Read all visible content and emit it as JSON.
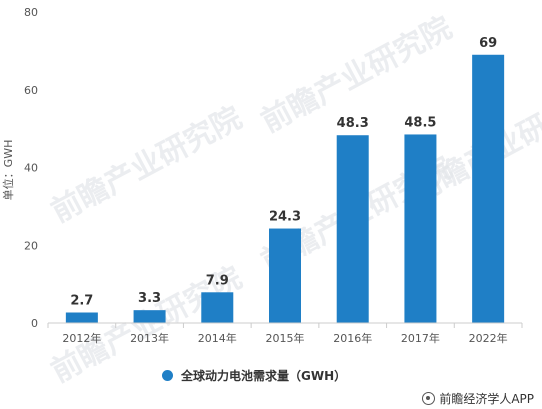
{
  "chart_data": {
    "type": "bar",
    "categories": [
      "2012年",
      "2013年",
      "2014年",
      "2015年",
      "2016年",
      "2017年",
      "2022年"
    ],
    "values": [
      2.7,
      3.3,
      7.9,
      24.3,
      48.3,
      48.5,
      69
    ],
    "data_labels": [
      "2.7",
      "3.3",
      "7.9",
      "24.3",
      "48.3",
      "48.5",
      "69"
    ],
    "ylabel": "单位：GWH",
    "ylim": [
      0,
      80
    ],
    "yticks": [
      0,
      20,
      40,
      60,
      80
    ],
    "legend": "全球动力电池需求量（GWH）",
    "legend_position": "bottom",
    "bar_color": "#1f7fc6",
    "grid": false
  },
  "credit": "前瞻经济学人APP",
  "credit_icon": "info-circle-icon",
  "watermark": "前瞻产业研究院"
}
